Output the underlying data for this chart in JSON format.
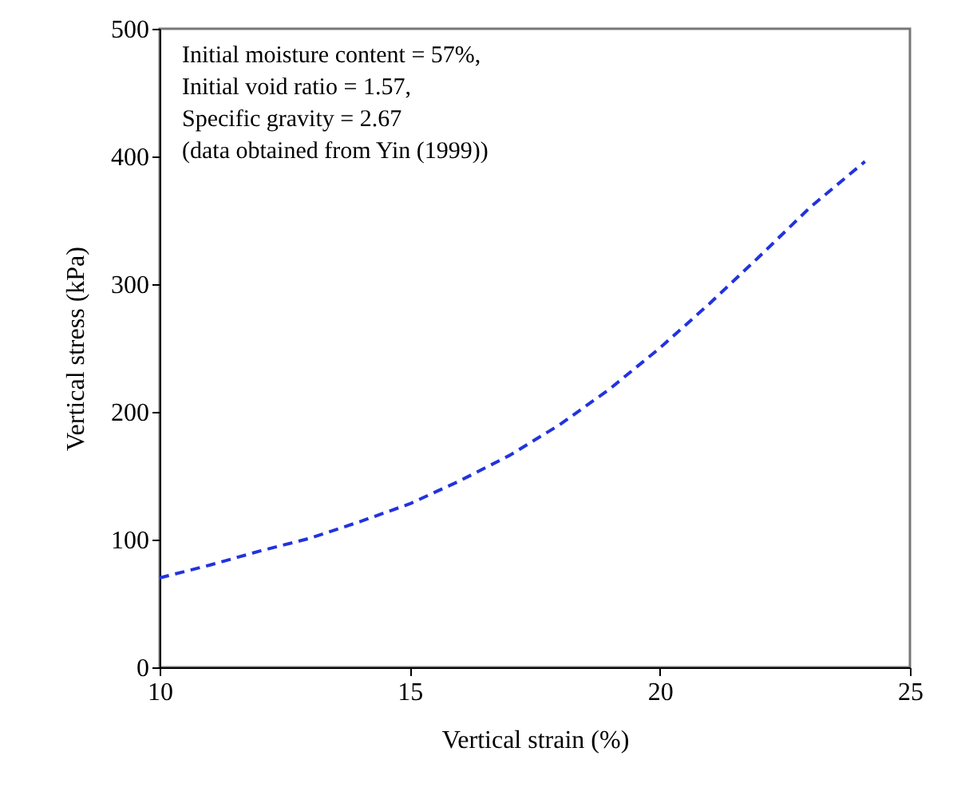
{
  "chart_data": {
    "type": "line",
    "xlabel": "Vertical strain (%)",
    "ylabel": "Vertical stress (kPa)",
    "x": [
      10,
      11,
      12,
      13,
      14,
      15,
      16,
      17,
      18,
      19,
      20,
      21,
      22,
      23,
      24.1
    ],
    "series": [
      {
        "color": "#2233dd",
        "line_style": "dashed",
        "values": [
          70,
          80,
          91,
          101,
          114,
          128,
          146,
          166,
          190,
          218,
          250,
          285,
          322,
          360,
          396
        ]
      }
    ],
    "xlim": [
      10,
      25
    ],
    "xticks": [
      10,
      15,
      20,
      25
    ],
    "ylim": [
      0,
      500
    ],
    "yticks": [
      0,
      100,
      200,
      300,
      400,
      500
    ],
    "annotations": [
      "Initial moisture content = 57%,",
      "Initial void ratio = 1.57,",
      "Specific gravity = 2.67",
      "(data obtained from Yin (1999))"
    ],
    "grid": false
  }
}
